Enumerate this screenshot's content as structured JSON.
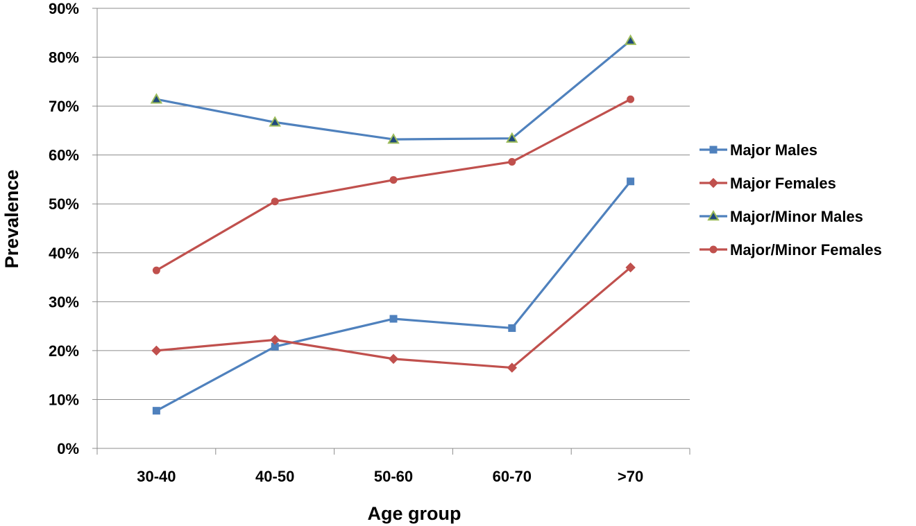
{
  "chart_data": {
    "type": "line",
    "categories": [
      "30-40",
      "40-50",
      "50-60",
      "60-70",
      ">70"
    ],
    "xlabel": "Age group",
    "ylabel": "Prevalence",
    "ylim": [
      0,
      90
    ],
    "yticks": [
      "0%",
      "10%",
      "20%",
      "30%",
      "40%",
      "50%",
      "60%",
      "70%",
      "80%",
      "90%"
    ],
    "grid": "horizontal",
    "legend_position": "right",
    "series": [
      {
        "name": "Major Males",
        "color": "#4f81bd",
        "marker": "square",
        "marker_fill": "#4f81bd",
        "marker_stroke": "#4f81bd",
        "values": [
          7.7,
          20.8,
          26.5,
          24.6,
          54.6
        ]
      },
      {
        "name": "Major Females",
        "color": "#c0504d",
        "marker": "diamond",
        "marker_fill": "#c0504d",
        "marker_stroke": "#c0504d",
        "values": [
          20.0,
          22.2,
          18.3,
          16.5,
          37.0
        ]
      },
      {
        "name": "Major/Minor Males",
        "color": "#4f81bd",
        "marker": "triangle",
        "marker_fill": "#1f497d",
        "marker_stroke": "#9bbb59",
        "values": [
          71.4,
          66.7,
          63.2,
          63.4,
          83.4
        ]
      },
      {
        "name": "Major/Minor Females",
        "color": "#c0504d",
        "marker": "circle",
        "marker_fill": "#c0504d",
        "marker_stroke": "#c0504d",
        "values": [
          36.4,
          50.5,
          54.9,
          58.6,
          71.4
        ]
      }
    ]
  }
}
